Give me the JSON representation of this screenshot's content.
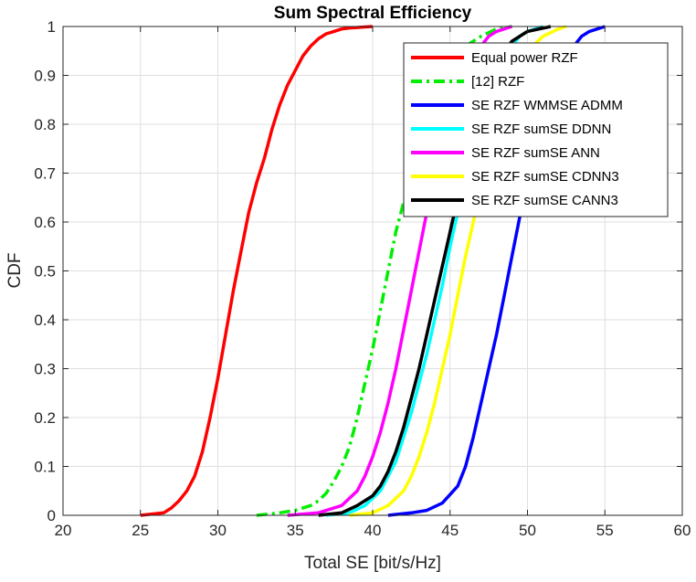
{
  "chart_data": {
    "type": "line",
    "title": "Sum Spectral Efficiency",
    "xlabel": "Total SE [bit/s/Hz]",
    "ylabel": "CDF",
    "xlim": [
      20,
      60
    ],
    "ylim": [
      0,
      1
    ],
    "xticks": [
      20,
      25,
      30,
      35,
      40,
      45,
      50,
      55,
      60
    ],
    "yticks": [
      0,
      0.1,
      0.2,
      0.3,
      0.4,
      0.5,
      0.6,
      0.7,
      0.8,
      0.9,
      1
    ],
    "xtick_labels": [
      "20",
      "25",
      "30",
      "35",
      "40",
      "45",
      "50",
      "55",
      "60"
    ],
    "ytick_labels": [
      "0",
      "0.1",
      "0.2",
      "0.3",
      "0.4",
      "0.5",
      "0.6",
      "0.7",
      "0.8",
      "0.9",
      "1"
    ],
    "grid": true,
    "legend_position": "top-right",
    "series": [
      {
        "name": "Equal power RZF",
        "color": "#ff0000",
        "dash": "solid",
        "x": [
          25.0,
          26.5,
          27.0,
          27.5,
          28.0,
          28.5,
          29.0,
          29.5,
          30.0,
          30.5,
          31.0,
          31.5,
          32.0,
          32.5,
          33.0,
          33.5,
          34.0,
          34.5,
          35.0,
          35.5,
          36.0,
          36.5,
          37.0,
          37.5,
          38.0,
          38.5,
          39.0,
          39.5,
          40.0
        ],
        "y": [
          0.0,
          0.005,
          0.015,
          0.03,
          0.05,
          0.08,
          0.13,
          0.2,
          0.28,
          0.37,
          0.46,
          0.54,
          0.62,
          0.68,
          0.73,
          0.79,
          0.84,
          0.88,
          0.91,
          0.94,
          0.96,
          0.975,
          0.985,
          0.99,
          0.995,
          0.997,
          0.998,
          0.999,
          1.0
        ]
      },
      {
        "name": "[12] RZF",
        "color": "#00ee00",
        "dash": "dashdot",
        "x": [
          32.5,
          34.0,
          35.0,
          36.0,
          36.5,
          37.0,
          37.5,
          38.0,
          38.5,
          39.0,
          39.5,
          40.0,
          40.5,
          41.0,
          41.5,
          42.0,
          42.5,
          43.0,
          43.5,
          44.0,
          44.5,
          45.0,
          46.0,
          47.0,
          48.0,
          49.0
        ],
        "y": [
          0.0,
          0.005,
          0.01,
          0.02,
          0.03,
          0.045,
          0.07,
          0.1,
          0.14,
          0.2,
          0.27,
          0.34,
          0.42,
          0.5,
          0.58,
          0.64,
          0.7,
          0.76,
          0.81,
          0.85,
          0.89,
          0.92,
          0.96,
          0.98,
          0.995,
          1.0
        ]
      },
      {
        "name": "SE RZF WMMSE ADMM",
        "color": "#0000ff",
        "dash": "solid",
        "x": [
          41.0,
          42.5,
          43.5,
          44.5,
          45.5,
          46.0,
          46.5,
          47.0,
          47.5,
          48.0,
          48.5,
          49.0,
          49.5,
          50.0,
          50.5,
          51.0,
          51.5,
          52.0,
          52.5,
          53.0,
          53.5,
          54.0,
          55.0
        ],
        "y": [
          0.0,
          0.005,
          0.01,
          0.025,
          0.06,
          0.1,
          0.16,
          0.23,
          0.3,
          0.37,
          0.45,
          0.53,
          0.61,
          0.68,
          0.75,
          0.81,
          0.86,
          0.9,
          0.94,
          0.96,
          0.98,
          0.99,
          1.0
        ]
      },
      {
        "name": "SE RZF sumSE DDNN",
        "color": "#00ffff",
        "dash": "solid",
        "x": [
          37.0,
          38.5,
          39.5,
          40.5,
          41.0,
          41.5,
          42.0,
          42.5,
          43.0,
          43.5,
          44.0,
          44.5,
          45.0,
          45.5,
          46.0,
          46.5,
          47.0,
          47.5,
          48.0,
          48.5,
          49.0,
          49.5,
          50.0,
          51.0
        ],
        "y": [
          0.0,
          0.005,
          0.02,
          0.05,
          0.08,
          0.11,
          0.16,
          0.21,
          0.27,
          0.33,
          0.4,
          0.47,
          0.55,
          0.62,
          0.69,
          0.75,
          0.8,
          0.85,
          0.9,
          0.93,
          0.96,
          0.98,
          0.99,
          1.0
        ]
      },
      {
        "name": "SE RZF sumSE ANN",
        "color": "#ff00ff",
        "dash": "solid",
        "x": [
          34.5,
          36.5,
          38.0,
          39.0,
          39.5,
          40.0,
          40.5,
          41.0,
          41.5,
          42.0,
          42.5,
          43.0,
          43.5,
          44.0,
          44.5,
          45.0,
          45.5,
          46.0,
          46.5,
          47.0,
          47.5,
          48.0,
          49.0
        ],
        "y": [
          0.0,
          0.005,
          0.02,
          0.05,
          0.08,
          0.12,
          0.17,
          0.23,
          0.3,
          0.38,
          0.46,
          0.54,
          0.62,
          0.69,
          0.76,
          0.82,
          0.87,
          0.91,
          0.94,
          0.96,
          0.98,
          0.99,
          1.0
        ]
      },
      {
        "name": "SE RZF sumSE CDNN3",
        "color": "#ffff00",
        "dash": "solid",
        "x": [
          38.5,
          40.0,
          41.0,
          42.0,
          42.5,
          43.0,
          43.5,
          44.0,
          44.5,
          45.0,
          45.5,
          46.0,
          46.5,
          47.0,
          47.5,
          48.0,
          48.5,
          49.0,
          49.5,
          50.0,
          51.0,
          52.0,
          52.5
        ],
        "y": [
          0.0,
          0.005,
          0.02,
          0.05,
          0.08,
          0.12,
          0.17,
          0.23,
          0.3,
          0.37,
          0.45,
          0.53,
          0.6,
          0.67,
          0.74,
          0.8,
          0.85,
          0.89,
          0.93,
          0.95,
          0.98,
          0.995,
          1.0
        ]
      },
      {
        "name": "SE RZF sumSE CANN3",
        "color": "#000000",
        "dash": "solid",
        "x": [
          36.5,
          38.0,
          39.0,
          40.0,
          40.5,
          41.0,
          41.5,
          42.0,
          42.5,
          43.0,
          43.5,
          44.0,
          44.5,
          45.0,
          45.5,
          46.0,
          46.5,
          47.0,
          47.5,
          48.0,
          48.5,
          49.0,
          50.0,
          51.5
        ],
        "y": [
          0.0,
          0.005,
          0.02,
          0.04,
          0.06,
          0.09,
          0.13,
          0.18,
          0.24,
          0.3,
          0.37,
          0.44,
          0.51,
          0.58,
          0.65,
          0.72,
          0.78,
          0.84,
          0.88,
          0.92,
          0.95,
          0.97,
          0.99,
          1.0
        ]
      }
    ]
  }
}
